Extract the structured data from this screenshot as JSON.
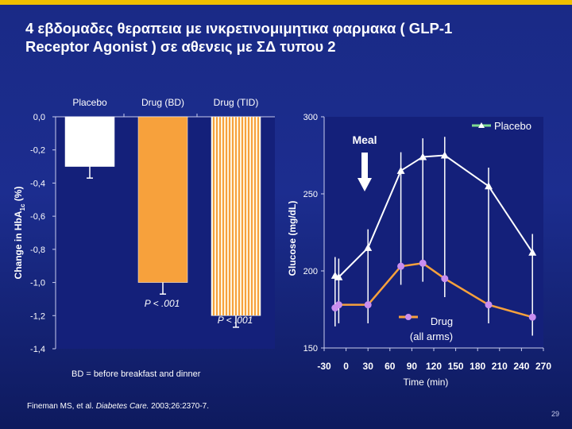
{
  "slide": {
    "title_line1": "4 εβδομαδες θεραπεια με ινκρετινομιμητικα φαρμακα ( GLP-1",
    "title_line2": "Receptor Agonist ) σε αθενεις με ΣΔ τυπου 2",
    "footnote": "BD = before breakfast and dinner",
    "citation_authors": "Fineman MS, et al. ",
    "citation_journal": "Diabetes Care.",
    "citation_rest": " 2003;26:2370-7.",
    "page_number": "29"
  },
  "colors": {
    "accent_bar": "#f0c000",
    "placebo": "#ffffff",
    "drug_bd": "#f7a13c",
    "drug_tid": "#f7a13c",
    "drug_line": "#f7a13c",
    "drug_marker": "#c98ef0",
    "plot_bg": "#14207a"
  },
  "chart_data": [
    {
      "type": "bar",
      "categories": [
        "Placebo",
        "Drug (BD)",
        "Drug (TID)"
      ],
      "values": [
        -0.3,
        -1.0,
        -1.2
      ],
      "ylabel": "Change in HbA",
      "ylabel_sub": "1c",
      "ylabel_suffix": " (%)",
      "ylim": [
        -1.4,
        0.0
      ],
      "ytick_labels": [
        "0,0",
        "-0,2",
        "-0,4",
        "-0,6",
        "-0,8",
        "-1,0",
        "-1,2",
        "-1,4"
      ],
      "annotations": [
        "P < .001",
        "P < .001"
      ]
    },
    {
      "type": "line",
      "x": [
        -30,
        0,
        30,
        60,
        90,
        120,
        150,
        180,
        210,
        240,
        270
      ],
      "xtick_labels": [
        "-30",
        "0",
        "30",
        "60",
        "90",
        "120",
        "150",
        "180",
        "210",
        "240",
        "270"
      ],
      "xlabel": "Time (min)",
      "ylabel": "Glucose (mg/dL)",
      "ylim": [
        150,
        300
      ],
      "ytick_labels": [
        "300",
        "250",
        "200",
        "150"
      ],
      "series": [
        {
          "name": "Placebo",
          "x": [
            -15,
            -10,
            30,
            75,
            105,
            135,
            195,
            255
          ],
          "values": [
            197,
            196,
            215,
            265,
            274,
            275,
            255,
            212
          ]
        },
        {
          "name_line1": "Drug",
          "name_line2": "(all arms)",
          "x": [
            -15,
            -10,
            30,
            75,
            105,
            135,
            195,
            255
          ],
          "values": [
            176,
            178,
            178,
            203,
            205,
            195,
            178,
            170
          ]
        }
      ],
      "annotation": "Meal"
    }
  ]
}
